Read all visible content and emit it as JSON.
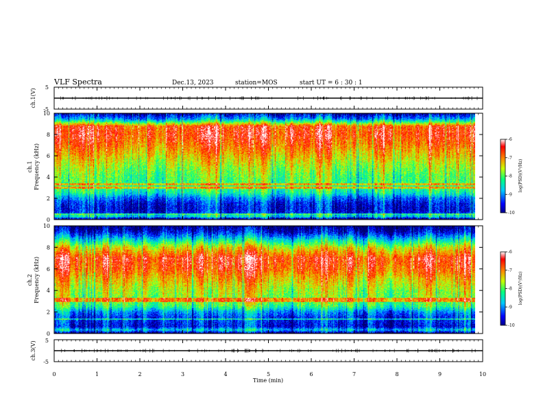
{
  "header": {
    "title": "VLF Spectra",
    "date": "Dec.13, 2023",
    "station": "station=MOS",
    "start_ut": "start  UT  =   6  : 30 : 1"
  },
  "chart_data": [
    {
      "type": "line",
      "panel": "ch.1 waveform",
      "ylabel": "ch.1(V)",
      "ylim": [
        -5,
        5
      ],
      "yticks": [
        "5",
        "-5"
      ],
      "baseline_value": 0,
      "xlim": [
        0,
        10
      ]
    },
    {
      "type": "heatmap",
      "panel": "ch.1 spectrogram",
      "ylabel": "ch.1\nFrequency (kHz)",
      "ylim": [
        0,
        10
      ],
      "yticks": [
        "0",
        "2",
        "4",
        "6",
        "8",
        "10"
      ],
      "xlim": [
        0,
        9.85
      ],
      "colorbar": {
        "label": "log(PSD)(V²/Hz)",
        "range": [
          -10,
          -6
        ],
        "ticks": [
          "-6",
          "-7",
          "-8",
          "-9",
          "-10"
        ]
      },
      "frequency_profile_log_psd": [
        {
          "freq_khz": 0.0,
          "level": -9.9
        },
        {
          "freq_khz": 0.3,
          "level": -8.3
        },
        {
          "freq_khz": 0.6,
          "level": -9.4
        },
        {
          "freq_khz": 1.0,
          "level": -9.5
        },
        {
          "freq_khz": 1.5,
          "level": -9.4
        },
        {
          "freq_khz": 2.0,
          "level": -9.0
        },
        {
          "freq_khz": 2.5,
          "level": -8.3
        },
        {
          "freq_khz": 3.0,
          "level": -8.0
        },
        {
          "freq_khz": 4.0,
          "level": -7.9
        },
        {
          "freq_khz": 5.0,
          "level": -7.6
        },
        {
          "freq_khz": 6.0,
          "level": -7.2
        },
        {
          "freq_khz": 7.0,
          "level": -6.8
        },
        {
          "freq_khz": 8.0,
          "level": -6.5
        },
        {
          "freq_khz": 8.8,
          "level": -6.6
        },
        {
          "freq_khz": 9.2,
          "level": -8.0
        },
        {
          "freq_khz": 9.5,
          "level": -8.9
        },
        {
          "freq_khz": 10.0,
          "level": -9.6
        }
      ],
      "line_emissions_khz": [
        3.0,
        3.3,
        0.5
      ]
    },
    {
      "type": "heatmap",
      "panel": "ch.2 spectrogram",
      "ylabel": "ch.2\nFrequency (kHz)",
      "ylim": [
        0,
        10
      ],
      "yticks": [
        "0",
        "2",
        "4",
        "6",
        "8",
        "10"
      ],
      "xlim": [
        0,
        9.85
      ],
      "colorbar": {
        "label": "log(PSD)(V²/Hz)",
        "range": [
          -10,
          -6
        ],
        "ticks": [
          "-6",
          "-7",
          "-8",
          "-9",
          "-10"
        ]
      },
      "frequency_profile_log_psd": [
        {
          "freq_khz": 0.0,
          "level": -9.9
        },
        {
          "freq_khz": 0.3,
          "level": -8.6
        },
        {
          "freq_khz": 0.6,
          "level": -9.5
        },
        {
          "freq_khz": 1.0,
          "level": -9.4
        },
        {
          "freq_khz": 1.5,
          "level": -9.3
        },
        {
          "freq_khz": 2.0,
          "level": -8.9
        },
        {
          "freq_khz": 2.5,
          "level": -8.1
        },
        {
          "freq_khz": 3.0,
          "level": -7.8
        },
        {
          "freq_khz": 4.0,
          "level": -7.6
        },
        {
          "freq_khz": 5.0,
          "level": -7.2
        },
        {
          "freq_khz": 6.0,
          "level": -6.7
        },
        {
          "freq_khz": 7.0,
          "level": -6.5
        },
        {
          "freq_khz": 8.0,
          "level": -7.4
        },
        {
          "freq_khz": 8.8,
          "level": -8.6
        },
        {
          "freq_khz": 9.2,
          "level": -9.2
        },
        {
          "freq_khz": 9.5,
          "level": -9.6
        },
        {
          "freq_khz": 10.0,
          "level": -9.9
        }
      ],
      "line_emissions_khz": [
        3.0,
        3.2,
        1.3
      ]
    },
    {
      "type": "line",
      "panel": "ch.3 waveform",
      "ylabel": "ch.3(V)",
      "ylim": [
        -5,
        5
      ],
      "yticks": [
        "5",
        "-5"
      ],
      "baseline_value": 0,
      "xlim": [
        0,
        10
      ]
    }
  ],
  "x_axis": {
    "label": "Time  (min)",
    "ticks": [
      "0",
      "1",
      "2",
      "3",
      "4",
      "5",
      "6",
      "7",
      "8",
      "9",
      "10"
    ],
    "range": [
      0,
      10
    ]
  },
  "colorbar_colors": [
    "#00008b",
    "#0000ff",
    "#00c8ff",
    "#00ff80",
    "#c8ff00",
    "#ff8000",
    "#ff0000",
    "#ffffff"
  ]
}
